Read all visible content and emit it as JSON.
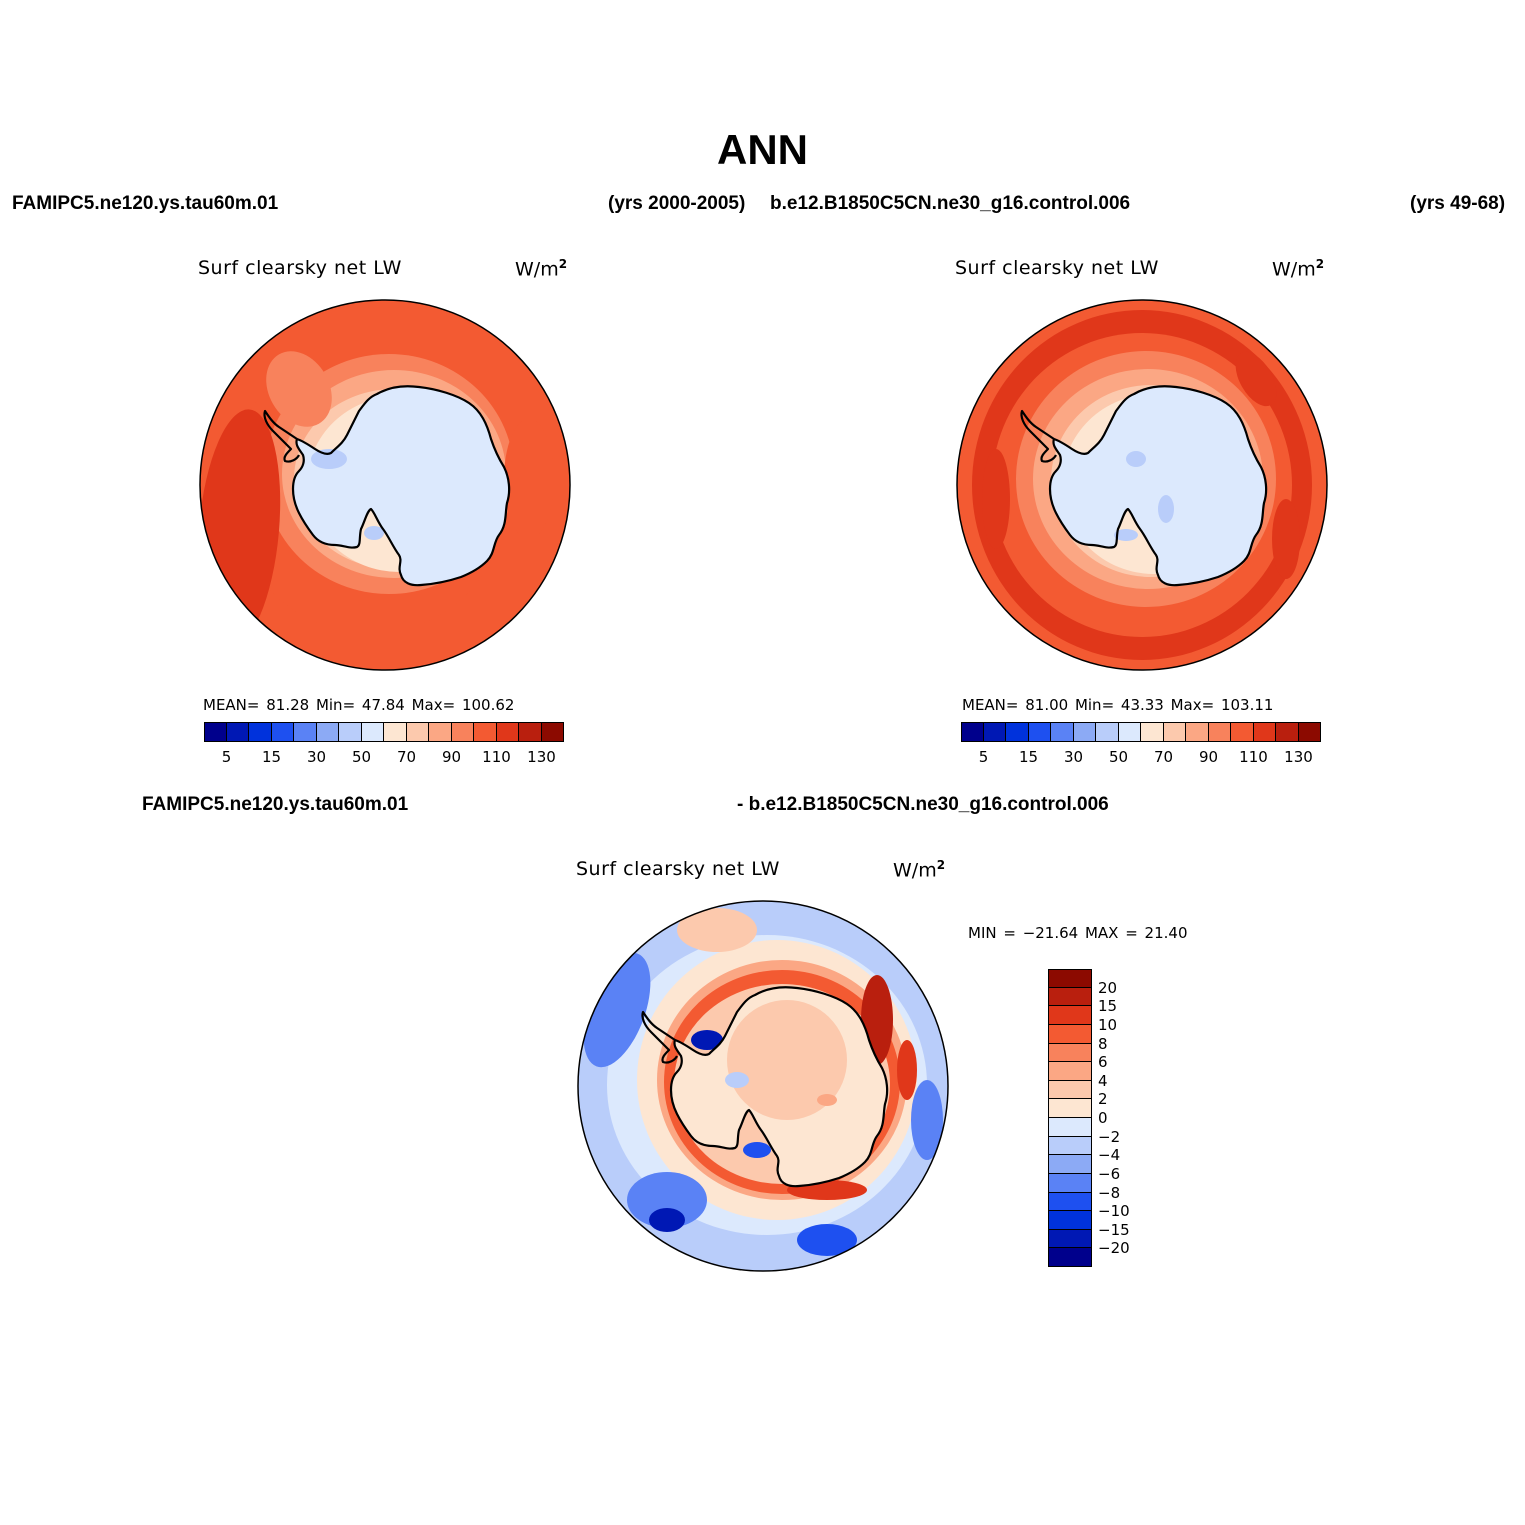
{
  "main_title": "ANN",
  "top_header": {
    "left_case": "FAMIPC5.ne120.ys.tau60m.01",
    "left_years": "(yrs 2000-2005)",
    "right_case": "b.e12.B1850C5CN.ne30_g16.control.006",
    "right_years": "(yrs 49-68)"
  },
  "diff_header": {
    "left": "FAMIPC5.ne120.ys.tau60m.01",
    "right": "- b.e12.B1850C5CN.ne30_g16.control.006"
  },
  "panels": [
    {
      "title": "Surf clearsky net LW",
      "units_base": "W/m",
      "units_exp": "2",
      "stats": "MEAN=  81.28  Min=  47.84  Max= 100.62"
    },
    {
      "title": "Surf clearsky net LW",
      "units_base": "W/m",
      "units_exp": "2",
      "stats": "MEAN=  81.00  Min=  43.33  Max= 103.11"
    },
    {
      "title": "Surf clearsky net LW",
      "units_base": "W/m",
      "units_exp": "2",
      "stats": "MIN = −21.64 MAX =  21.40"
    }
  ],
  "abs_colorbar": {
    "colors": [
      "#00008c",
      "#0018b4",
      "#0032dc",
      "#1e50f0",
      "#5a82f5",
      "#8caaf5",
      "#b9cdfa",
      "#dce9fd",
      "#fde6d2",
      "#fcc9ad",
      "#fba784",
      "#f8825c",
      "#f35a32",
      "#e0371a",
      "#b91f0e",
      "#8c0a00"
    ],
    "labels": [
      "5",
      "15",
      "30",
      "50",
      "70",
      "90",
      "110",
      "130"
    ]
  },
  "diff_colorbar": {
    "colors": [
      "#8c0a00",
      "#b91f0e",
      "#e0371a",
      "#f35a32",
      "#f8825c",
      "#fba784",
      "#fcc9ad",
      "#fde6d2",
      "#dce9fd",
      "#b9cdfa",
      "#8caaf5",
      "#5a82f5",
      "#1e50f0",
      "#0032dc",
      "#0018b4",
      "#00008c"
    ],
    "labels": [
      "20",
      "15",
      "10",
      "8",
      "6",
      "4",
      "2",
      "0",
      "−2",
      "−4",
      "−6",
      "−8",
      "−10",
      "−15",
      "−20"
    ]
  }
}
